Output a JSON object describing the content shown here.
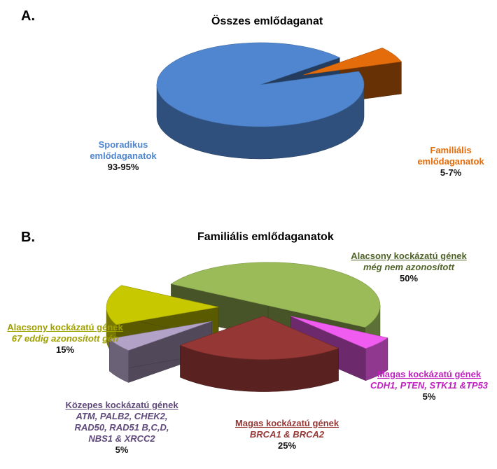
{
  "chart_data": [
    {
      "type": "pie",
      "panel": "A.",
      "title": "Összes emlődaganat",
      "slices": [
        {
          "label_lines": [
            "Sporadikus",
            "emlődaganatok"
          ],
          "value_label": "93-95%",
          "value": 94,
          "color": "#4f86cf"
        },
        {
          "label_lines": [
            "Familiális",
            "emlődaganatok"
          ],
          "value_label": "5-7%",
          "value": 6,
          "color": "#e46c0a"
        }
      ]
    },
    {
      "type": "pie",
      "panel": "B.",
      "title": "Familiális emlődaganatok",
      "slices": [
        {
          "label": "Alacsony kockázatú gének",
          "sublines": [
            "még nem azonosított"
          ],
          "value_label": "50%",
          "value": 50,
          "color": "#9bbb59"
        },
        {
          "label": "Magas kockázatú gének",
          "sublines": [
            "CDH1, PTEN, STK11 &TP53"
          ],
          "value_label": "5%",
          "value": 5,
          "color": "#f05cf0"
        },
        {
          "label": "Magas kockázatú gének",
          "sublines": [
            "BRCA1 & BRCA2"
          ],
          "value_label": "25%",
          "value": 25,
          "color": "#953735"
        },
        {
          "label": "Közepes kockázatú gének",
          "sublines": [
            "ATM, PALB2, CHEK2,",
            "RAD50, RAD51 B,C,D,",
            "NBS1 & XRCC2"
          ],
          "value_label": "5%",
          "value": 5,
          "color": "#b3a2c7"
        },
        {
          "label": "Alacsony kockázatú gének",
          "sublines": [
            "67 eddig azonosított gén"
          ],
          "value_label": "15%",
          "value": 15,
          "color": "#c8c800"
        }
      ]
    }
  ],
  "colors": {
    "a_label_sporadic": "#4f86cf",
    "a_label_familial": "#e46c0a",
    "b_label_low_unknown": "#4f6228",
    "b_label_high_other": "#c020c0",
    "b_label_brca": "#953735",
    "b_label_medium": "#5f497a",
    "b_label_low_known": "#a0a000"
  }
}
